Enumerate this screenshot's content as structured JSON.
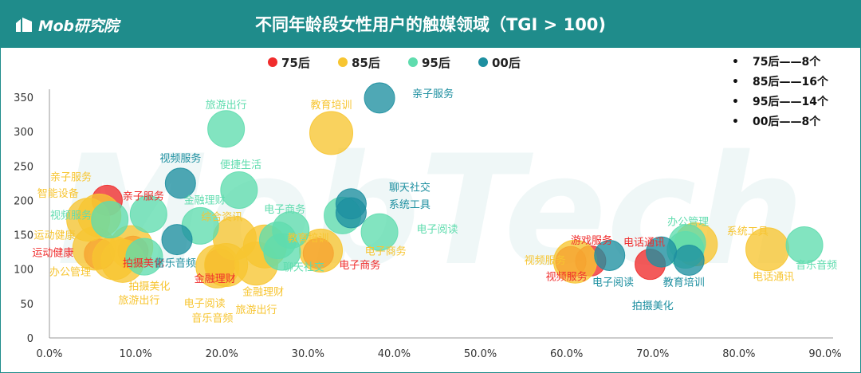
{
  "header": {
    "logo_text": "Mob研究院",
    "title": "不同年龄段女性用户的触媒领域（TGI > 100)"
  },
  "watermark": {
    "text": "MobTech"
  },
  "summary": {
    "items": [
      {
        "bullet": "•",
        "text": "75后——8个"
      },
      {
        "bullet": "•",
        "text": "85后——16个"
      },
      {
        "bullet": "•",
        "text": "95后——14个"
      },
      {
        "bullet": "•",
        "text": "00后——8个"
      }
    ]
  },
  "colors": {
    "header_bg": "#1f8c8b",
    "75后": "#f02c2c",
    "85后": "#f7c531",
    "95后": "#5fdcae",
    "00后": "#1d8fa0"
  },
  "chart_data": {
    "type": "scatter",
    "title": "不同年龄段女性用户的触媒领域（TGI > 100)",
    "xlabel": "",
    "ylabel": "",
    "xlim": [
      0,
      0.9
    ],
    "ylim": [
      0,
      350
    ],
    "x_ticks": [
      "0.0%",
      "10.0%",
      "20.0%",
      "30.0%",
      "40.0%",
      "50.0%",
      "60.0%",
      "70.0%",
      "80.0%",
      "90.0%"
    ],
    "y_ticks": [
      "0",
      "50",
      "100",
      "150",
      "200",
      "250",
      "300",
      "350"
    ],
    "grid": false,
    "legend": "top",
    "series": [
      {
        "name": "75后",
        "color": "#f02c2c",
        "points": [
          {
            "label": "亲子服务",
            "x": 0.067,
            "y": 200,
            "size": 1
          },
          {
            "label": "运动健康",
            "x": 0.058,
            "y": 122,
            "size": 1
          },
          {
            "label": "拍摄美化",
            "x": 0.097,
            "y": 126,
            "size": 1
          },
          {
            "label": "金融理财",
            "x": 0.198,
            "y": 107,
            "size": 1
          },
          {
            "label": "电子商务",
            "x": 0.312,
            "y": 123,
            "size": 1
          },
          {
            "label": "视频服务",
            "x": 0.605,
            "y": 111,
            "size": 1
          },
          {
            "label": "游戏服务",
            "x": 0.628,
            "y": 112,
            "size": 1
          },
          {
            "label": "电话通讯",
            "x": 0.697,
            "y": 107,
            "size": 1
          }
        ]
      },
      {
        "name": "85后",
        "color": "#f7c531",
        "points": [
          {
            "label": "亲子服务",
            "x": 0.058,
            "y": 178,
            "size": 2
          },
          {
            "label": "智能设备",
            "x": 0.045,
            "y": 172,
            "size": 2
          },
          {
            "label": "运动健康",
            "x": 0.052,
            "y": 130,
            "size": 2
          },
          {
            "label": "办公管理",
            "x": 0.075,
            "y": 116,
            "size": 2
          },
          {
            "label": "拍摄美化",
            "x": 0.085,
            "y": 112,
            "size": 2
          },
          {
            "label": "旅游出行",
            "x": 0.095,
            "y": 132,
            "size": 2
          },
          {
            "label": "综合资讯",
            "x": 0.215,
            "y": 145,
            "size": 2
          },
          {
            "label": "电子阅读",
            "x": 0.195,
            "y": 104,
            "size": 2
          },
          {
            "label": "音乐音频",
            "x": 0.205,
            "y": 106,
            "size": 2
          },
          {
            "label": "金融理财",
            "x": 0.25,
            "y": 133,
            "size": 2
          },
          {
            "label": "旅游出行",
            "x": 0.24,
            "y": 108,
            "size": 2
          },
          {
            "label": "教育培训",
            "x": 0.327,
            "y": 298,
            "size": 2
          },
          {
            "label": "电子商务",
            "x": 0.315,
            "y": 127,
            "size": 2
          },
          {
            "label": "视频服务",
            "x": 0.61,
            "y": 111,
            "size": 2
          },
          {
            "label": "系统工具",
            "x": 0.75,
            "y": 136,
            "size": 2
          },
          {
            "label": "电话通讯",
            "x": 0.833,
            "y": 129,
            "size": 2
          }
        ]
      },
      {
        "name": "95后",
        "color": "#5fdcae",
        "points": [
          {
            "label": "视频服务",
            "x": 0.07,
            "y": 172,
            "size": 1.5
          },
          {
            "label": "运动健康",
            "x": 0.11,
            "y": 118,
            "size": 1.5
          },
          {
            "label": "金融理财",
            "x": 0.115,
            "y": 180,
            "size": 1.5
          },
          {
            "label": "旅游出行",
            "x": 0.205,
            "y": 304,
            "size": 1.5
          },
          {
            "label": "便捷生活",
            "x": 0.22,
            "y": 215,
            "size": 1.5
          },
          {
            "label": "综合资讯",
            "x": 0.175,
            "y": 163,
            "size": 1.5
          },
          {
            "label": "电子商务",
            "x": 0.28,
            "y": 157,
            "size": 1.5
          },
          {
            "label": "聊天社交",
            "x": 0.27,
            "y": 125,
            "size": 1.5
          },
          {
            "label": "教育培训",
            "x": 0.265,
            "y": 142,
            "size": 1.5
          },
          {
            "label": "电子阅读",
            "x": 0.383,
            "y": 154,
            "size": 1.5
          },
          {
            "label": "亲子服务",
            "x": 0.34,
            "y": 178,
            "size": 1.5
          },
          {
            "label": "办公管理",
            "x": 0.74,
            "y": 138,
            "size": 1.5
          },
          {
            "label": "音乐音频",
            "x": 0.876,
            "y": 135,
            "size": 1.5
          },
          {
            "label": "系统工具",
            "x": 0.738,
            "y": 128,
            "size": 1.5
          }
        ]
      },
      {
        "name": "00后",
        "color": "#1d8fa0",
        "points": [
          {
            "label": "亲子服务",
            "x": 0.383,
            "y": 349,
            "size": 1
          },
          {
            "label": "视频服务",
            "x": 0.152,
            "y": 225,
            "size": 1
          },
          {
            "label": "音乐音频",
            "x": 0.148,
            "y": 143,
            "size": 1
          },
          {
            "label": "聊天社交",
            "x": 0.35,
            "y": 195,
            "size": 1
          },
          {
            "label": "系统工具",
            "x": 0.35,
            "y": 182,
            "size": 1
          },
          {
            "label": "电子阅读",
            "x": 0.65,
            "y": 120,
            "size": 1
          },
          {
            "label": "拍摄美化",
            "x": 0.71,
            "y": 125,
            "size": 1
          },
          {
            "label": "教育培训",
            "x": 0.742,
            "y": 113,
            "size": 1
          }
        ]
      }
    ],
    "labels": [
      {
        "text": "旅游出行",
        "x": 0.205,
        "y": 334,
        "color": "#5fdcae"
      },
      {
        "text": "教育培训",
        "x": 0.327,
        "y": 334,
        "color": "#f7c531"
      },
      {
        "text": "亲子服务",
        "x": 0.445,
        "y": 350,
        "color": "#1d8fa0"
      },
      {
        "text": "视频服务",
        "x": 0.152,
        "y": 256,
        "color": "#1d8fa0"
      },
      {
        "text": "便捷生活",
        "x": 0.222,
        "y": 247,
        "color": "#5fdcae"
      },
      {
        "text": "亲子服务",
        "x": 0.025,
        "y": 229,
        "color": "#f7c531"
      },
      {
        "text": "智能设备",
        "x": 0.01,
        "y": 205,
        "color": "#f7c531"
      },
      {
        "text": "亲子服务",
        "x": 0.109,
        "y": 201,
        "color": "#f02c2c"
      },
      {
        "text": "金融理财",
        "x": 0.18,
        "y": 195,
        "color": "#5fdcae"
      },
      {
        "text": "视频服务",
        "x": 0.025,
        "y": 173,
        "color": "#5fdcae"
      },
      {
        "text": "综合资讯",
        "x": 0.2,
        "y": 171,
        "color": "#f7c531"
      },
      {
        "text": "电子商务",
        "x": 0.273,
        "y": 182,
        "color": "#5fdcae"
      },
      {
        "text": "聊天社交",
        "x": 0.418,
        "y": 214,
        "color": "#1d8fa0"
      },
      {
        "text": "系统工具",
        "x": 0.418,
        "y": 189,
        "color": "#1d8fa0"
      },
      {
        "text": "电子阅读",
        "x": 0.45,
        "y": 153,
        "color": "#5fdcae"
      },
      {
        "text": "运动健康",
        "x": 0.006,
        "y": 144,
        "color": "#f7c531"
      },
      {
        "text": "教育培训",
        "x": 0.3,
        "y": 140,
        "color": "#f7c531"
      },
      {
        "text": "电子商务",
        "x": 0.39,
        "y": 121,
        "color": "#f7c531"
      },
      {
        "text": "运动健康",
        "x": 0.004,
        "y": 119,
        "color": "#f02c2c"
      },
      {
        "text": "拍摄美化",
        "x": 0.109,
        "y": 104,
        "color": "#f02c2c"
      },
      {
        "text": "音乐音频",
        "x": 0.146,
        "y": 104,
        "color": "#1d8fa0"
      },
      {
        "text": "聊天社交",
        "x": 0.295,
        "y": 98,
        "color": "#5fdcae"
      },
      {
        "text": "电子商务",
        "x": 0.36,
        "y": 101,
        "color": "#f02c2c"
      },
      {
        "text": "办公管理",
        "x": 0.024,
        "y": 91,
        "color": "#f7c531"
      },
      {
        "text": "金融理财",
        "x": 0.192,
        "y": 81,
        "color": "#f02c2c"
      },
      {
        "text": "拍摄美化",
        "x": 0.116,
        "y": 70,
        "color": "#f7c531"
      },
      {
        "text": "金融理财",
        "x": 0.248,
        "y": 62,
        "color": "#f7c531"
      },
      {
        "text": "旅游出行",
        "x": 0.104,
        "y": 50,
        "color": "#f7c531"
      },
      {
        "text": "电子阅读",
        "x": 0.18,
        "y": 45,
        "color": "#f7c531"
      },
      {
        "text": "旅游出行",
        "x": 0.24,
        "y": 36,
        "color": "#f7c531"
      },
      {
        "text": "音乐音频",
        "x": 0.189,
        "y": 24,
        "color": "#f7c531"
      },
      {
        "text": "办公管理",
        "x": 0.741,
        "y": 164,
        "color": "#5fdcae"
      },
      {
        "text": "系统工具",
        "x": 0.81,
        "y": 150,
        "color": "#f7c531"
      },
      {
        "text": "游戏服务",
        "x": 0.629,
        "y": 137,
        "color": "#f02c2c"
      },
      {
        "text": "电话通讯",
        "x": 0.69,
        "y": 134,
        "color": "#f02c2c"
      },
      {
        "text": "视频服务",
        "x": 0.575,
        "y": 108,
        "color": "#f7c531"
      },
      {
        "text": "视频服务",
        "x": 0.6,
        "y": 84,
        "color": "#f02c2c"
      },
      {
        "text": "电子阅读",
        "x": 0.654,
        "y": 76,
        "color": "#1d8fa0"
      },
      {
        "text": "教育培训",
        "x": 0.736,
        "y": 76,
        "color": "#1d8fa0"
      },
      {
        "text": "拍摄美化",
        "x": 0.7,
        "y": 42,
        "color": "#1d8fa0"
      },
      {
        "text": "电话通讯",
        "x": 0.84,
        "y": 84,
        "color": "#f7c531"
      },
      {
        "text": "音乐音频",
        "x": 0.89,
        "y": 101,
        "color": "#5fdcae"
      }
    ]
  }
}
